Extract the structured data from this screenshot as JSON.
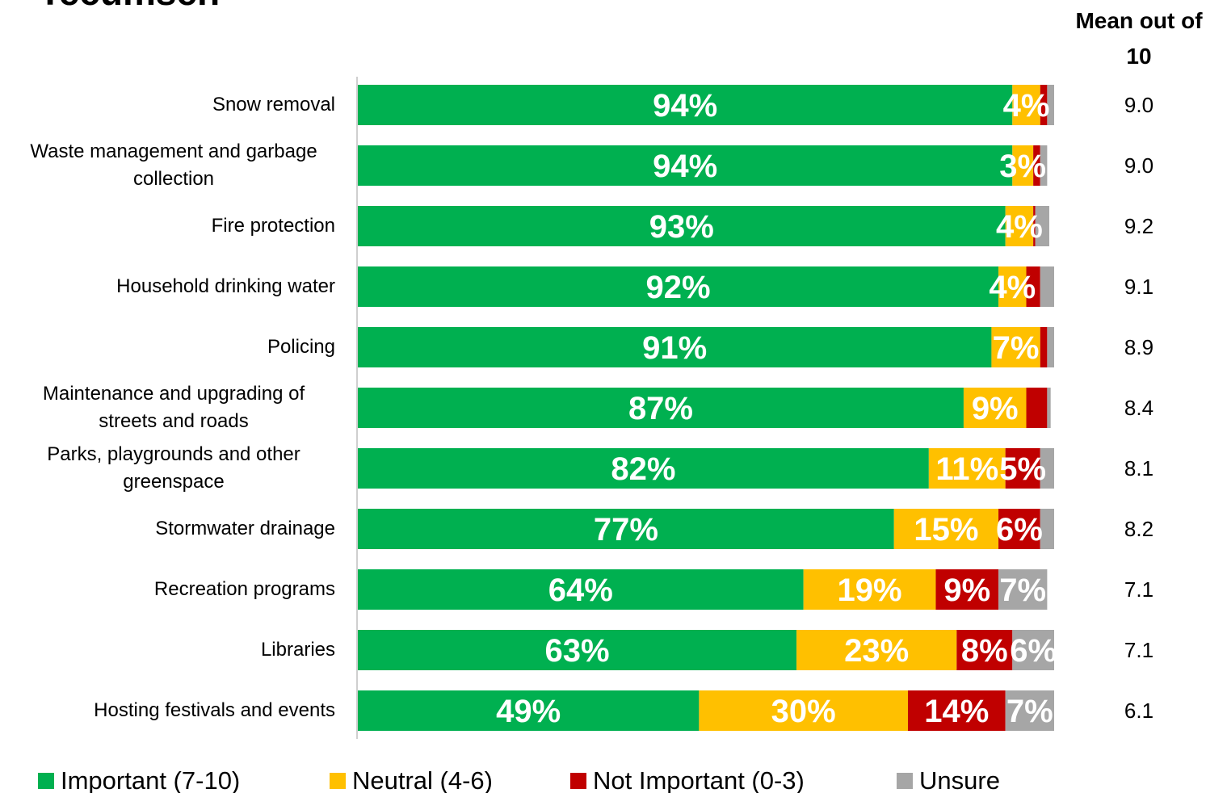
{
  "chart_data": {
    "type": "stacked-bar-horizontal",
    "title": "Tecumseh",
    "categories": [
      "Snow removal",
      "Waste management and garbage collection",
      "Fire protection",
      "Household drinking water",
      "Policing",
      "Maintenance and upgrading of streets and roads",
      "Parks, playgrounds and other greenspace",
      "Stormwater drainage",
      "Recreation programs",
      "Libraries",
      "Hosting festivals and events"
    ],
    "xlim": [
      0,
      100
    ],
    "series": [
      {
        "name": "Important (7-10)",
        "color": "#00b050",
        "values": [
          94,
          94,
          93,
          92,
          91,
          87,
          82,
          77,
          64,
          63,
          49
        ],
        "value_labels": [
          "94%",
          "94%",
          "93%",
          "92%",
          "91%",
          "87%",
          "82%",
          "77%",
          "64%",
          "63%",
          "49%"
        ]
      },
      {
        "name": "Neutral (4-6)",
        "color": "#ffc000",
        "values": [
          4,
          3,
          4,
          4,
          7,
          9,
          11,
          15,
          19,
          23,
          30
        ],
        "value_labels": [
          "4%",
          "3%",
          "4%",
          "4%",
          "7%",
          "9%",
          "11%",
          "15%",
          "19%",
          "23%",
          "30%"
        ]
      },
      {
        "name": "Not Important (0-3)",
        "color": "#c00000",
        "values": [
          1,
          1,
          0.3,
          2,
          1,
          3,
          5,
          6,
          9,
          8,
          14
        ],
        "value_labels": [
          null,
          null,
          null,
          null,
          null,
          null,
          "5%",
          "6%",
          "9%",
          "8%",
          "14%"
        ]
      },
      {
        "name": "Unsure",
        "color": "#a6a6a6",
        "values": [
          1,
          1,
          2,
          2,
          1,
          0.5,
          2,
          2,
          7,
          6,
          7
        ],
        "value_labels": [
          null,
          null,
          null,
          null,
          null,
          null,
          null,
          null,
          "7%",
          "6%",
          "7%"
        ]
      }
    ],
    "means": {
      "title": "Mean out of 10",
      "values": [
        9.0,
        9.0,
        9.2,
        9.1,
        8.9,
        8.4,
        8.1,
        8.2,
        7.1,
        7.1,
        6.1
      ],
      "value_labels": [
        "9.0",
        "9.0",
        "9.2",
        "9.1",
        "8.9",
        "8.4",
        "8.1",
        "8.2",
        "7.1",
        "7.1",
        "6.1"
      ]
    },
    "legend": "bottom"
  }
}
